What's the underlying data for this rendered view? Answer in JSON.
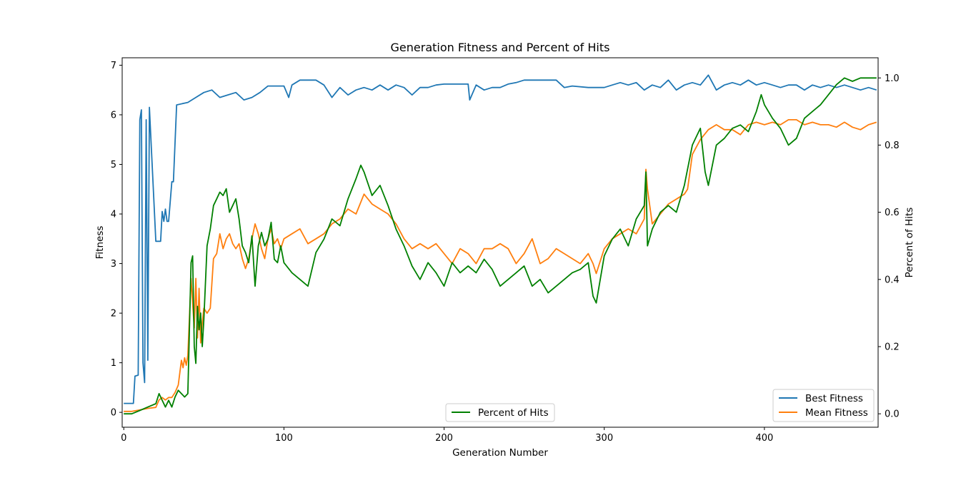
{
  "chart_data": {
    "type": "line",
    "title": "Generation Fitness and Percent of Hits",
    "xlabel": "Generation Number",
    "ylabel_left": "Fitness",
    "ylabel_right": "Percent of Hits",
    "xlim": [
      -1,
      471
    ],
    "ylim_left": [
      -0.3,
      7.15
    ],
    "ylim_right": [
      -0.04,
      1.06
    ],
    "xticks": [
      0,
      100,
      200,
      300,
      400
    ],
    "yticks_left": [
      0,
      1,
      2,
      3,
      4,
      5,
      6,
      7
    ],
    "yticks_right": [
      0.0,
      0.2,
      0.4,
      0.6,
      0.8,
      1.0
    ],
    "grid": false,
    "legends": [
      {
        "placement": "lower-right",
        "entries": [
          "Best Fitness",
          "Mean Fitness"
        ]
      },
      {
        "placement": "lower-center",
        "entries": [
          "Percent of Hits"
        ]
      }
    ],
    "series": [
      {
        "name": "Best Fitness",
        "axis": "left",
        "color": "#1f77b4",
        "x": [
          0,
          6,
          7,
          9,
          10,
          11,
          12,
          13,
          14,
          15,
          16,
          20,
          23,
          24,
          25,
          26,
          27,
          28,
          30,
          31,
          33,
          40,
          45,
          50,
          55,
          60,
          65,
          70,
          75,
          80,
          85,
          90,
          100,
          103,
          105,
          110,
          120,
          125,
          130,
          135,
          140,
          145,
          150,
          155,
          160,
          165,
          170,
          175,
          180,
          185,
          190,
          195,
          200,
          210,
          215,
          216,
          220,
          225,
          230,
          235,
          240,
          245,
          250,
          260,
          270,
          275,
          280,
          290,
          300,
          305,
          310,
          315,
          320,
          325,
          330,
          335,
          340,
          345,
          350,
          355,
          360,
          365,
          370,
          375,
          380,
          385,
          390,
          395,
          400,
          405,
          410,
          415,
          420,
          425,
          430,
          435,
          440,
          445,
          450,
          455,
          460,
          465,
          470
        ],
        "values": [
          0.18,
          0.18,
          0.73,
          0.75,
          5.9,
          6.1,
          1.0,
          0.6,
          5.9,
          1.05,
          6.15,
          3.45,
          3.45,
          4.05,
          3.85,
          4.1,
          3.85,
          3.85,
          4.65,
          4.65,
          6.2,
          6.25,
          6.35,
          6.45,
          6.5,
          6.35,
          6.4,
          6.45,
          6.3,
          6.35,
          6.45,
          6.58,
          6.58,
          6.35,
          6.6,
          6.7,
          6.7,
          6.6,
          6.35,
          6.55,
          6.4,
          6.5,
          6.55,
          6.5,
          6.6,
          6.5,
          6.6,
          6.55,
          6.4,
          6.55,
          6.55,
          6.6,
          6.62,
          6.62,
          6.62,
          6.3,
          6.6,
          6.5,
          6.55,
          6.55,
          6.62,
          6.65,
          6.7,
          6.7,
          6.7,
          6.55,
          6.58,
          6.55,
          6.55,
          6.6,
          6.65,
          6.6,
          6.65,
          6.5,
          6.6,
          6.55,
          6.7,
          6.5,
          6.6,
          6.65,
          6.6,
          6.8,
          6.5,
          6.6,
          6.65,
          6.6,
          6.7,
          6.6,
          6.65,
          6.6,
          6.55,
          6.6,
          6.6,
          6.5,
          6.6,
          6.55,
          6.6,
          6.55,
          6.6,
          6.55,
          6.5,
          6.55,
          6.5
        ]
      },
      {
        "name": "Mean Fitness",
        "axis": "left",
        "color": "#ff7f0e",
        "x": [
          0,
          5,
          10,
          15,
          20,
          22,
          24,
          26,
          28,
          30,
          32,
          34,
          36,
          37,
          38,
          39,
          40,
          42,
          43,
          44,
          45,
          46,
          47,
          48,
          49,
          50,
          52,
          54,
          56,
          58,
          60,
          62,
          64,
          66,
          68,
          70,
          72,
          74,
          76,
          78,
          80,
          82,
          84,
          86,
          88,
          90,
          92,
          94,
          96,
          98,
          100,
          105,
          110,
          115,
          120,
          125,
          130,
          135,
          140,
          145,
          150,
          155,
          160,
          165,
          170,
          175,
          180,
          185,
          190,
          195,
          200,
          205,
          210,
          215,
          220,
          225,
          230,
          235,
          240,
          245,
          250,
          255,
          260,
          265,
          270,
          275,
          280,
          285,
          290,
          293,
          295,
          300,
          305,
          310,
          315,
          320,
          325,
          326,
          327,
          330,
          335,
          340,
          345,
          350,
          352,
          355,
          360,
          365,
          370,
          375,
          380,
          385,
          390,
          395,
          400,
          405,
          410,
          415,
          420,
          425,
          430,
          435,
          440,
          445,
          450,
          455,
          460,
          465,
          470
        ],
        "values": [
          0.02,
          0.02,
          0.05,
          0.08,
          0.1,
          0.25,
          0.3,
          0.25,
          0.3,
          0.3,
          0.4,
          0.55,
          1.05,
          0.9,
          1.1,
          0.95,
          1.15,
          2.7,
          2.2,
          1.7,
          2.7,
          1.5,
          2.5,
          1.4,
          1.8,
          2.1,
          2.0,
          2.1,
          3.1,
          3.2,
          3.6,
          3.3,
          3.5,
          3.6,
          3.4,
          3.3,
          3.4,
          3.1,
          2.9,
          3.1,
          3.5,
          3.8,
          3.6,
          3.3,
          3.1,
          3.5,
          3.7,
          3.4,
          3.5,
          3.3,
          3.5,
          3.6,
          3.7,
          3.4,
          3.5,
          3.6,
          3.8,
          3.9,
          4.1,
          4.0,
          4.4,
          4.2,
          4.1,
          4.0,
          3.8,
          3.5,
          3.3,
          3.4,
          3.3,
          3.4,
          3.2,
          3.0,
          3.3,
          3.2,
          3.0,
          3.3,
          3.3,
          3.4,
          3.3,
          3.0,
          3.2,
          3.5,
          3.0,
          3.1,
          3.3,
          3.2,
          3.1,
          3.0,
          3.2,
          3.0,
          2.8,
          3.3,
          3.5,
          3.6,
          3.7,
          3.6,
          3.9,
          4.9,
          4.5,
          3.8,
          4.0,
          4.2,
          4.3,
          4.4,
          4.5,
          5.2,
          5.5,
          5.7,
          5.8,
          5.7,
          5.7,
          5.6,
          5.8,
          5.85,
          5.8,
          5.85,
          5.8,
          5.9,
          5.9,
          5.8,
          5.85,
          5.8,
          5.8,
          5.75,
          5.85,
          5.75,
          5.7,
          5.8,
          5.85
        ]
      },
      {
        "name": "Percent of Hits",
        "axis": "right",
        "color": "#008000",
        "x": [
          0,
          5,
          10,
          15,
          20,
          22,
          24,
          26,
          28,
          30,
          32,
          34,
          36,
          38,
          40,
          42,
          43,
          44,
          45,
          46,
          47,
          48,
          49,
          50,
          52,
          54,
          56,
          58,
          60,
          62,
          64,
          66,
          68,
          70,
          72,
          74,
          76,
          78,
          80,
          82,
          84,
          86,
          88,
          90,
          92,
          94,
          96,
          98,
          100,
          105,
          110,
          115,
          120,
          125,
          130,
          135,
          140,
          145,
          148,
          150,
          155,
          160,
          165,
          170,
          175,
          180,
          185,
          190,
          195,
          200,
          205,
          210,
          215,
          220,
          225,
          230,
          235,
          240,
          245,
          250,
          255,
          260,
          265,
          270,
          275,
          280,
          285,
          290,
          293,
          295,
          300,
          305,
          310,
          315,
          320,
          325,
          326,
          327,
          330,
          335,
          340,
          345,
          350,
          355,
          360,
          363,
          365,
          370,
          375,
          380,
          385,
          390,
          395,
          398,
          400,
          405,
          410,
          415,
          420,
          425,
          430,
          435,
          440,
          445,
          450,
          455,
          460,
          465,
          470
        ],
        "values": [
          0.0,
          0.0,
          0.01,
          0.02,
          0.03,
          0.06,
          0.04,
          0.02,
          0.04,
          0.02,
          0.05,
          0.07,
          0.06,
          0.05,
          0.06,
          0.45,
          0.47,
          0.2,
          0.15,
          0.32,
          0.25,
          0.3,
          0.2,
          0.28,
          0.5,
          0.55,
          0.62,
          0.64,
          0.66,
          0.65,
          0.67,
          0.6,
          0.62,
          0.64,
          0.58,
          0.5,
          0.48,
          0.45,
          0.53,
          0.38,
          0.5,
          0.54,
          0.5,
          0.52,
          0.57,
          0.46,
          0.45,
          0.5,
          0.45,
          0.42,
          0.4,
          0.38,
          0.48,
          0.52,
          0.58,
          0.56,
          0.64,
          0.7,
          0.74,
          0.72,
          0.65,
          0.68,
          0.62,
          0.55,
          0.5,
          0.44,
          0.4,
          0.45,
          0.42,
          0.38,
          0.45,
          0.42,
          0.44,
          0.42,
          0.46,
          0.43,
          0.38,
          0.4,
          0.42,
          0.44,
          0.38,
          0.4,
          0.36,
          0.38,
          0.4,
          0.42,
          0.43,
          0.45,
          0.35,
          0.33,
          0.47,
          0.52,
          0.55,
          0.5,
          0.58,
          0.62,
          0.72,
          0.5,
          0.55,
          0.6,
          0.62,
          0.6,
          0.68,
          0.8,
          0.85,
          0.72,
          0.68,
          0.8,
          0.82,
          0.85,
          0.86,
          0.84,
          0.9,
          0.95,
          0.92,
          0.88,
          0.85,
          0.8,
          0.82,
          0.88,
          0.9,
          0.92,
          0.95,
          0.98,
          1.0,
          0.99,
          1.0,
          1.0,
          1.0
        ]
      }
    ]
  }
}
